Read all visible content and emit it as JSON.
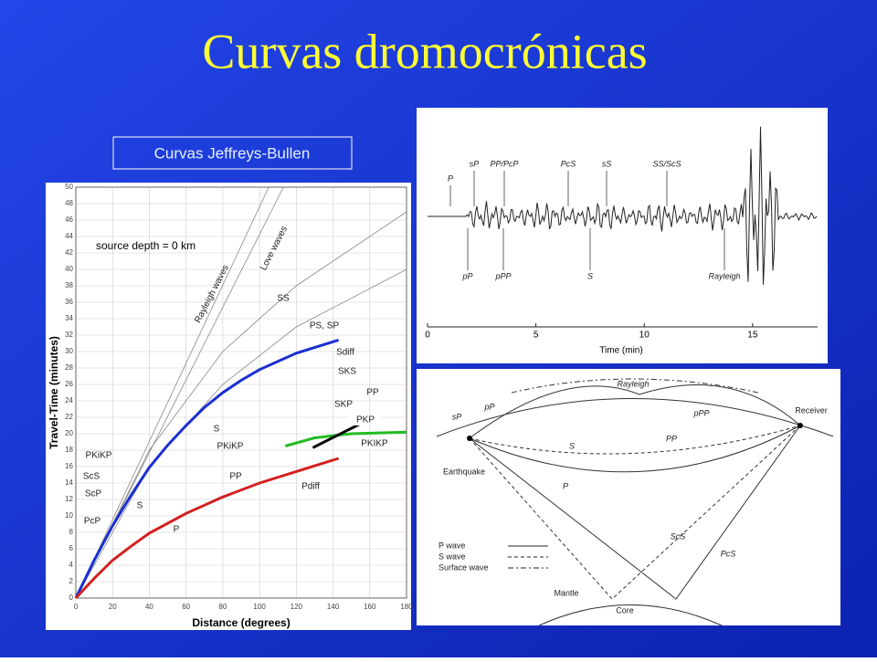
{
  "title": "Curvas dromocrónicas",
  "label_box": "Curvas Jeffreys-Bullen",
  "chart_data": {
    "type": "line",
    "annotation": "source depth = 0 km",
    "x_label": "Distance (degrees)",
    "y_label": "Travel-Time (minutes)",
    "xlim": [
      0,
      180
    ],
    "xticks": [
      0,
      20,
      40,
      60,
      80,
      100,
      120,
      140,
      160,
      180
    ],
    "ylim": [
      0,
      50
    ],
    "yticks": [
      0,
      2,
      4,
      6,
      8,
      10,
      12,
      14,
      16,
      18,
      20,
      22,
      24,
      26,
      28,
      30,
      32,
      34,
      36,
      38,
      40,
      42,
      44,
      46,
      48,
      50
    ],
    "grid": true,
    "curve_labels": [
      "Rayleigh waves",
      "Love waves",
      "SS",
      "PS, SP",
      "Sdiff",
      "SKS",
      "PP",
      "SKP",
      "PKP",
      "PKIKP",
      "S",
      "PKiKP",
      "PP",
      "Pdiff",
      "PKiKP",
      "ScS",
      "ScP",
      "PcP",
      "S",
      "P"
    ],
    "series": [
      {
        "color": "#888888",
        "x": [
          0,
          105
        ],
        "values": [
          0,
          50
        ]
      },
      {
        "color": "#888888",
        "x": [
          0,
          113
        ],
        "values": [
          0,
          50
        ]
      },
      {
        "color": "#888888",
        "x": [
          0,
          40,
          80,
          120,
          180
        ],
        "values": [
          0,
          18,
          30,
          38,
          47
        ]
      },
      {
        "color": "#888888",
        "x": [
          0,
          40,
          80,
          120,
          180
        ],
        "values": [
          0,
          16,
          26,
          33,
          40
        ]
      },
      {
        "color": "#1a2fd0",
        "x": [
          0,
          10,
          20,
          30,
          40,
          50,
          60,
          70,
          80,
          90,
          100,
          120,
          143
        ],
        "values": [
          0,
          4.6,
          8.8,
          12.5,
          15.9,
          18.6,
          21,
          23.2,
          25,
          26.5,
          27.8,
          29.8,
          31.4
        ]
      },
      {
        "color": "#d42020",
        "x": [
          0,
          10,
          20,
          30,
          40,
          60,
          80,
          100,
          120,
          143
        ],
        "values": [
          0,
          2.4,
          4.6,
          6.3,
          7.9,
          10.3,
          12.3,
          14,
          15.4,
          17
        ]
      },
      {
        "color": "#22bb22",
        "x": [
          114,
          130,
          150,
          180
        ],
        "values": [
          18.5,
          19.5,
          20,
          20.2
        ]
      },
      {
        "color": "#000000",
        "x": [
          129,
          161
        ],
        "values": [
          18.3,
          21.9
        ]
      }
    ]
  },
  "seismogram": {
    "xlim": [
      0,
      18
    ],
    "xticks": [
      0,
      5,
      10,
      15
    ],
    "x_label": "Time (min)",
    "phases_top": [
      "P",
      "sP",
      "PP/PcP",
      "PcS",
      "sS",
      "SS/ScS"
    ],
    "phases_bottom": [
      "pP",
      "pPP",
      "S",
      "Rayleigh"
    ]
  },
  "diagram": {
    "labels": [
      "Rayleigh",
      "pP",
      "sP",
      "Receiver",
      "pPP",
      "PP",
      "S",
      "P",
      "Earthquake",
      "ScS",
      "PcS",
      "Mantle",
      "Core"
    ],
    "legend": [
      "P wave",
      "S wave",
      "Surface wave"
    ]
  }
}
